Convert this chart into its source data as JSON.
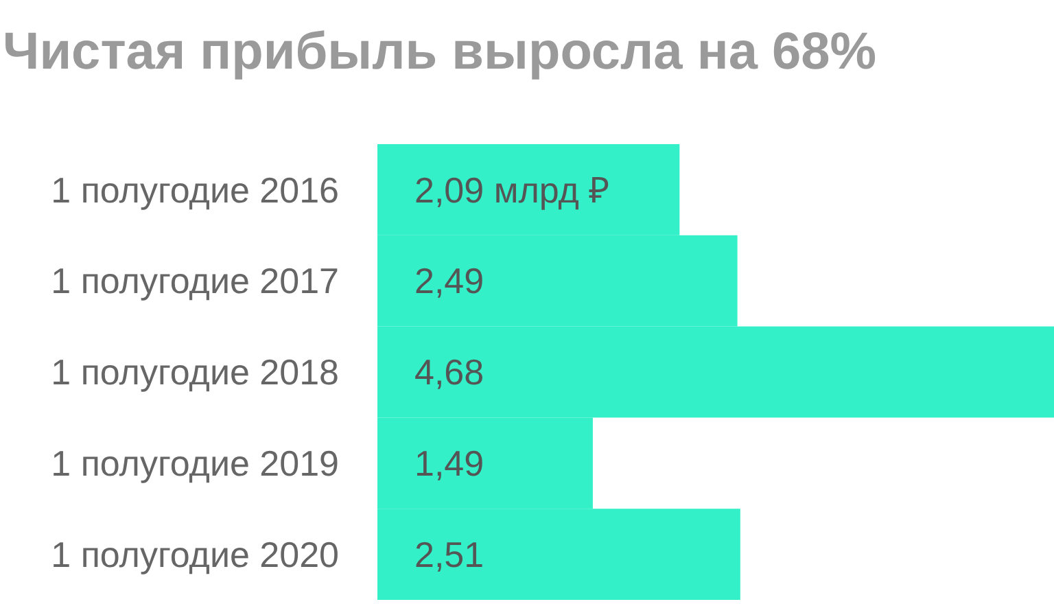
{
  "chart_data": {
    "type": "bar",
    "orientation": "horizontal",
    "title": "Чистая прибыль выросла на 68%",
    "categories": [
      "1 полугодие 2016",
      "1 полугодие 2017",
      "1 полугодие 2018",
      "1 полугодие 2019",
      "1 полугодие 2020"
    ],
    "values": [
      2.09,
      2.49,
      4.68,
      1.49,
      2.51
    ],
    "value_labels": [
      "2,09 млрд ₽",
      "2,49",
      "4,68",
      "1,49",
      "2,51"
    ],
    "color": "#33f0c8"
  }
}
